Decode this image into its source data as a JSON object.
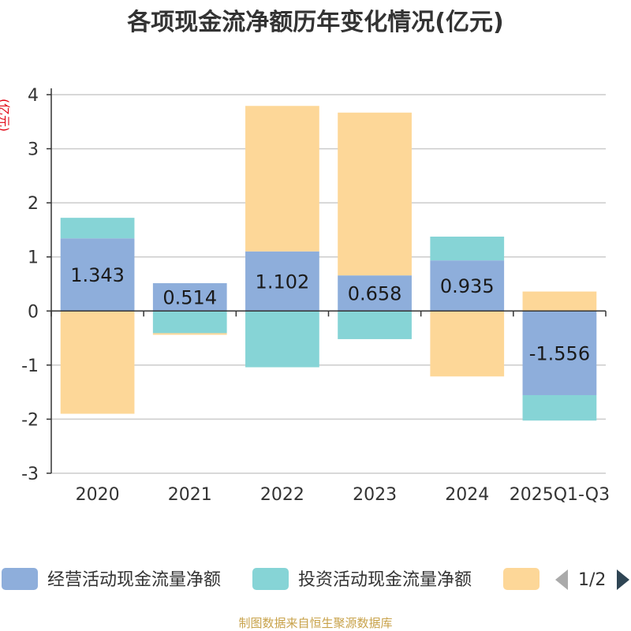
{
  "chart_data": {
    "type": "bar",
    "stacked": true,
    "title": "各项现金流净额历年变化情况(亿元)",
    "ylabel": "(亿元)",
    "xlabel": "",
    "categories": [
      "2020",
      "2021",
      "2022",
      "2023",
      "2024",
      "2025Q1-Q3"
    ],
    "ylim": [
      -3,
      4
    ],
    "yticks": [
      4,
      3,
      2,
      1,
      0,
      -1,
      -2,
      -3
    ],
    "grid": true,
    "series": [
      {
        "name": "经营活动现金流量净额",
        "color": "#8eaedb",
        "values": [
          1.343,
          0.514,
          1.102,
          0.658,
          0.935,
          -1.556
        ],
        "labels": [
          "1.343",
          "0.514",
          "1.102",
          "0.658",
          "0.935",
          "-1.556"
        ]
      },
      {
        "name": "投资活动现金流量净额",
        "color": "#86d4d6",
        "values": [
          0.38,
          -0.41,
          -1.04,
          -0.52,
          0.44,
          -0.47
        ]
      },
      {
        "name": "",
        "color": "#fdd798",
        "values": [
          -1.9,
          -0.03,
          2.69,
          3.01,
          -1.21,
          0.36
        ]
      }
    ],
    "legend": {
      "position": "bottom",
      "page": "1/2"
    }
  },
  "footer": {
    "source": "制图数据来自恒生聚源数据库"
  }
}
